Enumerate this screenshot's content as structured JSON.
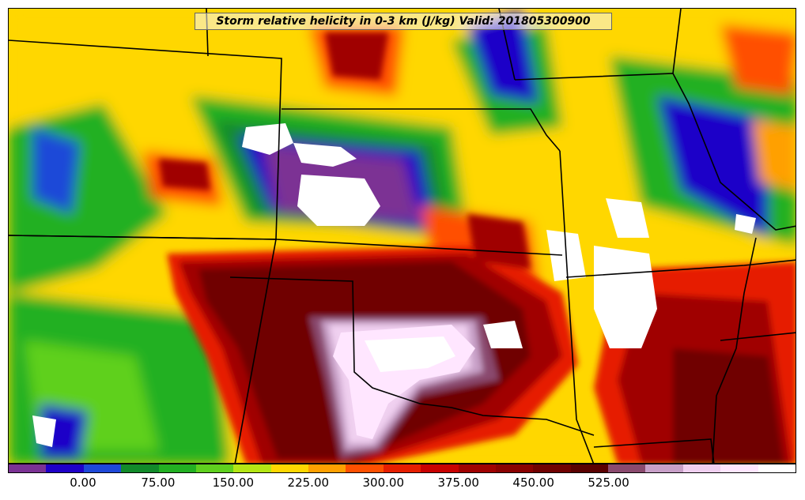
{
  "title": "Storm relative helicity in 0-3 km (J/kg) Valid: 201805300900",
  "map": {
    "field": "Storm relative helicity 0-3 km",
    "units": "J/kg",
    "valid_time": "201805300900",
    "background_color": "#ffd700"
  },
  "colorbar": {
    "colors": [
      "#7b3294",
      "#1e00c8",
      "#1e48d8",
      "#128a2a",
      "#22b022",
      "#5fd01e",
      "#b4e614",
      "#ffd700",
      "#ffa000",
      "#ff5000",
      "#e61e00",
      "#c80000",
      "#a00000",
      "#8a0000",
      "#700000",
      "#5a0000",
      "#8a4a6e",
      "#c8a0c8",
      "#f0d0f0",
      "#ffe6ff",
      "#ffffff"
    ],
    "tick_labels": [
      "0.00",
      "75.00",
      "150.00",
      "225.00",
      "300.00",
      "375.00",
      "450.00",
      "525.00"
    ]
  }
}
